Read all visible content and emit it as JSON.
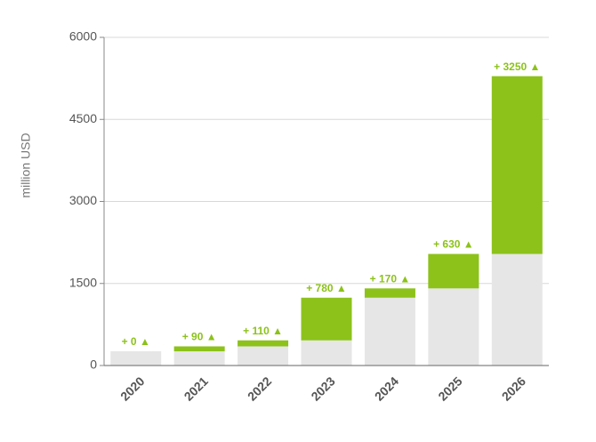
{
  "chart_data": {
    "type": "stacked-bar",
    "y_label": "million USD",
    "categories": [
      "2020",
      "2021",
      "2022",
      "2023",
      "2024",
      "2025",
      "2026"
    ],
    "series": [
      {
        "color": "#e6e6e6",
        "values": [
          260,
          260,
          350,
          460,
          1240,
          1410,
          2040
        ]
      },
      {
        "color": "#8cc21a",
        "values": [
          0,
          90,
          110,
          780,
          170,
          630,
          3250
        ],
        "value_labels": [
          "+ 0 ▲",
          "+ 90 ▲",
          "+ 110 ▲",
          "+ 780 ▲",
          "+ 170 ▲",
          "+ 630 ▲",
          "+ 3250 ▲"
        ]
      }
    ],
    "ylim": [
      0,
      6000
    ],
    "yticks": [
      0,
      1500,
      3000,
      4500,
      6000
    ],
    "grid": true
  }
}
